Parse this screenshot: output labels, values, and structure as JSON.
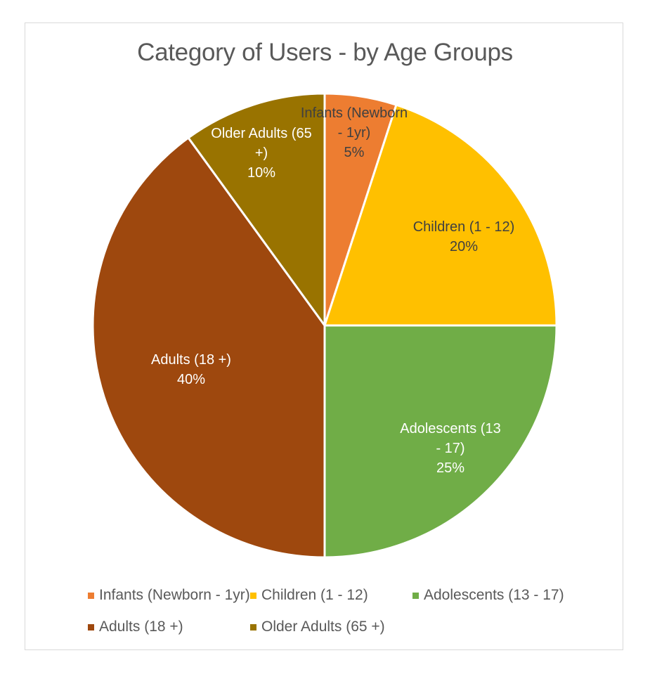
{
  "chart_data": {
    "type": "pie",
    "title": "Category of Users - by Age Groups",
    "slices": [
      {
        "name": "Infants (Newborn - 1yr)",
        "value": 5,
        "label_lines": [
          "Infants (Newborn",
          "- 1yr)",
          "5%"
        ],
        "color": "#ED7D31",
        "label_color": "#404040"
      },
      {
        "name": "Children (1 - 12)",
        "value": 20,
        "label_lines": [
          "Children (1 - 12)",
          "20%"
        ],
        "color": "#FFC000",
        "label_color": "#404040"
      },
      {
        "name": "Adolescents (13 - 17)",
        "value": 25,
        "label_lines": [
          "Adolescents (13",
          "- 17)",
          "25%"
        ],
        "color": "#70AD47",
        "label_color": "#ffffff"
      },
      {
        "name": "Adults (18 +)",
        "value": 40,
        "label_lines": [
          "Adults (18 +)",
          "40%"
        ],
        "color": "#9E480E",
        "label_color": "#ffffff"
      },
      {
        "name": "Older Adults (65 +)",
        "value": 10,
        "label_lines": [
          "Older Adults (65",
          "+)",
          "10%"
        ],
        "color": "#997300",
        "label_color": "#ffffff"
      }
    ],
    "legend_position": "bottom"
  }
}
